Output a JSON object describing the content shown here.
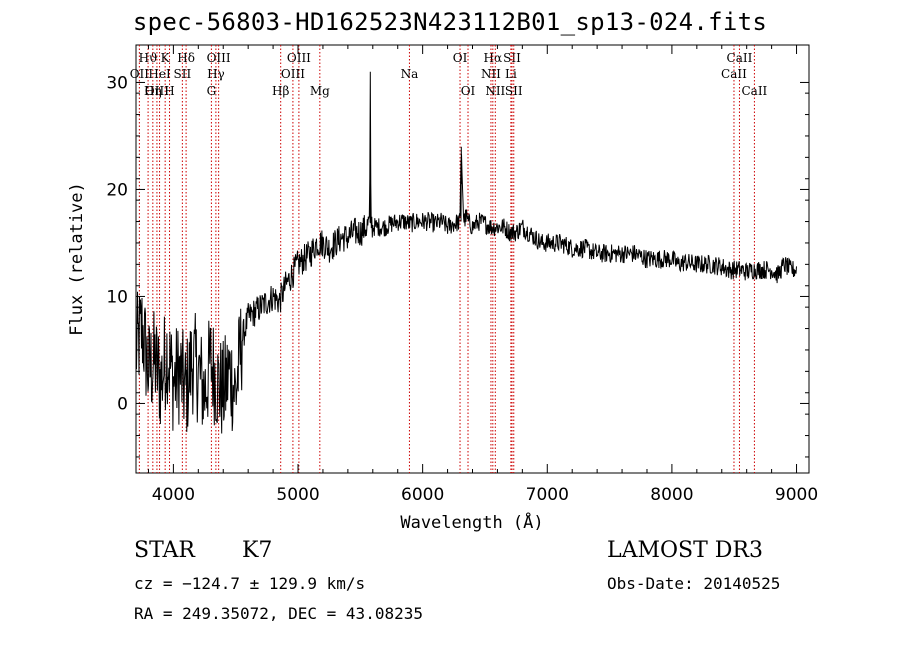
{
  "title": "spec-56803-HD162523N423112B01_sp13-024.fits",
  "info": {
    "object_class": "STAR",
    "subclass": "K7",
    "survey": "LAMOST DR3",
    "cz": "cz = −124.7 ± 129.9 km/s",
    "obs_date": "Obs-Date: 20140525",
    "radec": "RA = 249.35072, DEC =  43.08235"
  },
  "chart_data": {
    "type": "line",
    "title": "spec-56803-HD162523N423112B01_sp13-024.fits",
    "xlabel": "Wavelength (Å)",
    "ylabel": "Flux (relative)",
    "xlim": [
      3700,
      9100
    ],
    "ylim": [
      -6.5,
      33.5
    ],
    "x_ticks": [
      4000,
      5000,
      6000,
      7000,
      8000,
      9000
    ],
    "y_ticks": [
      0,
      10,
      20,
      30
    ],
    "series": [
      {
        "name": "spectrum",
        "x": [
          3700,
          3750,
          3800,
          3850,
          3900,
          3950,
          4000,
          4050,
          4100,
          4150,
          4200,
          4250,
          4300,
          4350,
          4400,
          4450,
          4500,
          4550,
          4600,
          4650,
          4700,
          4750,
          4800,
          4850,
          4900,
          4950,
          5000,
          5050,
          5100,
          5150,
          5200,
          5250,
          5300,
          5350,
          5400,
          5450,
          5500,
          5550,
          5575,
          5580,
          5585,
          5600,
          5650,
          5700,
          5750,
          5800,
          5850,
          5900,
          5950,
          6000,
          6050,
          6100,
          6150,
          6200,
          6250,
          6300,
          6310,
          6330,
          6350,
          6364,
          6380,
          6400,
          6450,
          6500,
          6550,
          6560,
          6600,
          6650,
          6700,
          6750,
          6800,
          6850,
          6900,
          6950,
          7000,
          7050,
          7100,
          7150,
          7200,
          7300,
          7400,
          7500,
          7600,
          7700,
          7800,
          7900,
          8000,
          8050,
          8100,
          8200,
          8300,
          8400,
          8450,
          8500,
          8550,
          8600,
          8650,
          8700,
          8750,
          8800,
          8850,
          8900,
          8950,
          9000
        ],
        "values": [
          5,
          7,
          3,
          4,
          2,
          5,
          2,
          3,
          1,
          4,
          3,
          1,
          4,
          2,
          1,
          3,
          1,
          6,
          8,
          8.5,
          9,
          9.5,
          10,
          9.5,
          11,
          12,
          13,
          13.5,
          14,
          15,
          15,
          14.5,
          15,
          15.5,
          15.5,
          16,
          16,
          16.5,
          17,
          31,
          17,
          16.5,
          16.5,
          16.5,
          16.8,
          17,
          17,
          16.8,
          17,
          17,
          17,
          16.8,
          17,
          16.5,
          16.8,
          17,
          24,
          17,
          17.5,
          17,
          16.8,
          16.5,
          17,
          16.8,
          16.5,
          16.5,
          16.5,
          16.5,
          16,
          16,
          16.5,
          16,
          15.5,
          15,
          15,
          15,
          15,
          14.8,
          14.5,
          14.5,
          14,
          14,
          14,
          14,
          13.5,
          13.5,
          13.5,
          13,
          13.2,
          13,
          13,
          12.8,
          12.5,
          12.5,
          12.5,
          12.3,
          12.5,
          12.5,
          12.5,
          12.5,
          12,
          13,
          12.5,
          12.5
        ]
      }
    ],
    "spectral_lines": [
      {
        "label": "Hϑ",
        "wavelength": 3797,
        "row": 1
      },
      {
        "label": "OII",
        "wavelength": 3727,
        "row": 2
      },
      {
        "label": "OIII",
        "wavelength": 3868,
        "row": 3
      },
      {
        "label": "K",
        "wavelength": 3934,
        "row": 1
      },
      {
        "label": "HeI",
        "wavelength": 3889,
        "row": 2
      },
      {
        "label": "Hη",
        "wavelength": 3835,
        "row": 3
      },
      {
        "label": "SII",
        "wavelength": 4072,
        "row": 2
      },
      {
        "label": "H",
        "wavelength": 3969,
        "row": 3
      },
      {
        "label": "Hδ",
        "wavelength": 4102,
        "row": 1
      },
      {
        "label": "OIII",
        "wavelength": 4363,
        "row": 1
      },
      {
        "label": "Hγ",
        "wavelength": 4341,
        "row": 2
      },
      {
        "label": "G",
        "wavelength": 4305,
        "row": 3
      },
      {
        "label": "Hβ",
        "wavelength": 4861,
        "row": 3
      },
      {
        "label": "OIII",
        "wavelength": 5007,
        "row": 1
      },
      {
        "label": "OIII",
        "wavelength": 4959,
        "row": 2
      },
      {
        "label": "Mg",
        "wavelength": 5175,
        "row": 3
      },
      {
        "label": "Na",
        "wavelength": 5894,
        "row": 2
      },
      {
        "label": "OI",
        "wavelength": 6300,
        "row": 1
      },
      {
        "label": "OI",
        "wavelength": 6364,
        "row": 3
      },
      {
        "label": "Hα",
        "wavelength": 6563,
        "row": 1
      },
      {
        "label": "NII",
        "wavelength": 6548,
        "row": 2
      },
      {
        "label": "NII",
        "wavelength": 6583,
        "row": 3
      },
      {
        "label": "SII",
        "wavelength": 6717,
        "row": 1
      },
      {
        "label": "Li",
        "wavelength": 6708,
        "row": 2
      },
      {
        "label": "SII",
        "wavelength": 6731,
        "row": 3
      },
      {
        "label": "CaII",
        "wavelength": 8542,
        "row": 1
      },
      {
        "label": "CaII",
        "wavelength": 8498,
        "row": 2
      },
      {
        "label": "CaII",
        "wavelength": 8662,
        "row": 3
      }
    ]
  }
}
